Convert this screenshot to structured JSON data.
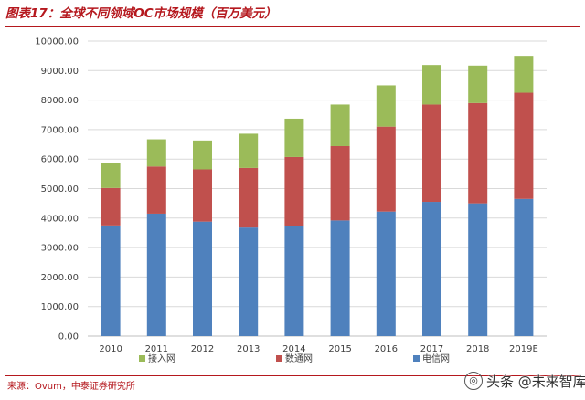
{
  "figure": {
    "title": "图表17：全球不同领域OC市场规模（百万美元）",
    "source": "来源：Ovum，中泰证券研究所",
    "watermark": "头条 @未来智库"
  },
  "colors": {
    "title_red": "#b5181e",
    "telecom": "#4f81bd",
    "datacom": "#c0504d",
    "access": "#9bbb59",
    "grid": "#d9d9d9",
    "axis_text": "#404040"
  },
  "chart_data": {
    "type": "bar",
    "stacked": true,
    "title": "全球不同领域OC市场规模（百万美元）",
    "xlabel": "",
    "ylabel": "",
    "ylim": [
      0,
      10000
    ],
    "ytick_step": 1000,
    "ytick_labels": [
      "0.00",
      "1000.00",
      "2000.00",
      "3000.00",
      "4000.00",
      "5000.00",
      "6000.00",
      "7000.00",
      "8000.00",
      "9000.00",
      "10000.00"
    ],
    "grid": true,
    "categories": [
      "2010",
      "2011",
      "2012",
      "2013",
      "2014",
      "2015",
      "2016",
      "2017",
      "2018",
      "2019E"
    ],
    "series": [
      {
        "name": "电信网",
        "color_key": "telecom",
        "values": [
          3750,
          4150,
          3880,
          3680,
          3720,
          3920,
          4220,
          4550,
          4500,
          4650
        ]
      },
      {
        "name": "数通网",
        "color_key": "datacom",
        "values": [
          1270,
          1600,
          1770,
          2020,
          2350,
          2520,
          2880,
          3300,
          3400,
          3600
        ]
      },
      {
        "name": "接入网",
        "color_key": "access",
        "values": [
          860,
          920,
          980,
          1160,
          1300,
          1410,
          1400,
          1340,
          1270,
          1250
        ]
      }
    ],
    "legend_order": [
      "接入网",
      "数通网",
      "电信网"
    ],
    "legend_placement": "bottom"
  }
}
